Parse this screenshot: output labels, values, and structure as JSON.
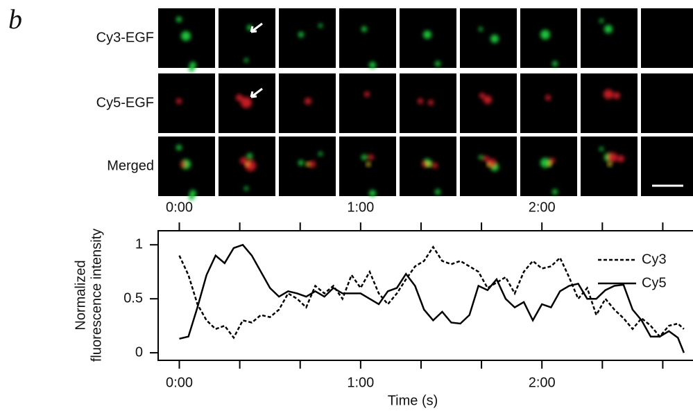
{
  "panel_label": "b",
  "image_rows": [
    "Cy3-EGF",
    "Cy5-EGF",
    "Merged"
  ],
  "chart_data": {
    "type": "line",
    "xlabel": "Time (s)",
    "ylabel": [
      "Normalized",
      "fluorescence intensity"
    ],
    "x": [
      0,
      3,
      6,
      9,
      12,
      15,
      18,
      21,
      24,
      27,
      30,
      33,
      36,
      39,
      42,
      45,
      48,
      51,
      54,
      57,
      60,
      63,
      66,
      69,
      72,
      75,
      78,
      81,
      84,
      87,
      90,
      93,
      96,
      99,
      102,
      105,
      108,
      111,
      114,
      117,
      120,
      123,
      126,
      129,
      132,
      135,
      138,
      141,
      144,
      147,
      150,
      153,
      156,
      159,
      162,
      165,
      167
    ],
    "series": [
      {
        "name": "Cy3",
        "color": "#000000",
        "linestyle": "dashed",
        "values": [
          0.9,
          0.72,
          0.45,
          0.3,
          0.22,
          0.25,
          0.14,
          0.3,
          0.28,
          0.35,
          0.33,
          0.4,
          0.55,
          0.5,
          0.42,
          0.62,
          0.55,
          0.62,
          0.5,
          0.72,
          0.6,
          0.75,
          0.55,
          0.45,
          0.55,
          0.68,
          0.8,
          0.85,
          0.98,
          0.85,
          0.82,
          0.85,
          0.8,
          0.75,
          0.6,
          0.65,
          0.7,
          0.55,
          0.75,
          0.85,
          0.78,
          0.8,
          0.88,
          0.7,
          0.5,
          0.6,
          0.35,
          0.5,
          0.4,
          0.32,
          0.22,
          0.32,
          0.25,
          0.15,
          0.25,
          0.27,
          0.22
        ]
      },
      {
        "name": "Cy5",
        "color": "#000000",
        "linestyle": "solid",
        "values": [
          0.13,
          0.15,
          0.42,
          0.72,
          0.9,
          0.83,
          0.97,
          1.0,
          0.9,
          0.75,
          0.6,
          0.52,
          0.57,
          0.55,
          0.52,
          0.57,
          0.52,
          0.6,
          0.55,
          0.55,
          0.55,
          0.5,
          0.45,
          0.57,
          0.6,
          0.73,
          0.62,
          0.4,
          0.3,
          0.38,
          0.28,
          0.27,
          0.35,
          0.62,
          0.58,
          0.68,
          0.5,
          0.42,
          0.47,
          0.3,
          0.45,
          0.42,
          0.57,
          0.62,
          0.64,
          0.5,
          0.5,
          0.58,
          0.62,
          0.63,
          0.4,
          0.3,
          0.15,
          0.15,
          0.2,
          0.14,
          0.0
        ]
      }
    ],
    "xlim": [
      -7,
      170
    ],
    "ylim": [
      -0.07,
      1.13
    ],
    "xticks": [
      {
        "value": 0,
        "label": "0:00"
      },
      {
        "value": 60,
        "label": "1:00"
      },
      {
        "value": 120,
        "label": "2:00"
      }
    ],
    "xminorticks": [
      20,
      40,
      80,
      100,
      140,
      160
    ],
    "yticks": [
      0,
      0.5,
      1
    ],
    "legend": "upper right"
  }
}
